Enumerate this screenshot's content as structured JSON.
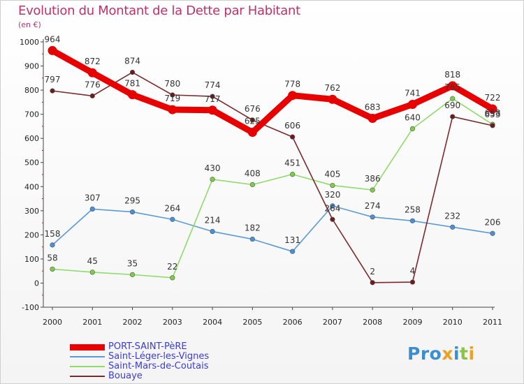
{
  "title": "Evolution du Montant de la Dette par Habitant",
  "subtitle": "(en €)",
  "logo": {
    "p1": "Pro",
    "x": "x",
    "i1": "i",
    "t": "t",
    "i2": "i"
  },
  "chart_data": {
    "type": "line",
    "x": [
      "2000",
      "2001",
      "2002",
      "2003",
      "2004",
      "2005",
      "2006",
      "2007",
      "2008",
      "2009",
      "2010",
      "2011"
    ],
    "ylim": [
      -100,
      1000
    ],
    "yticks": [
      -100,
      0,
      100,
      200,
      300,
      400,
      500,
      600,
      700,
      800,
      900,
      1000
    ],
    "grid": false,
    "legend_position": "bottom-left",
    "series": [
      {
        "name": "PORT-SAINT-PèRE",
        "color": "#e80000",
        "marker": "#e80000",
        "values": [
          964,
          872,
          781,
          719,
          717,
          625,
          778,
          762,
          683,
          741,
          818,
          722
        ]
      },
      {
        "name": "Saint-Léger-les-Vignes",
        "color": "#5b9bd5",
        "marker": "#4a90d9",
        "values": [
          158,
          307,
          295,
          264,
          214,
          182,
          131,
          320,
          274,
          258,
          232,
          206
        ]
      },
      {
        "name": "Saint-Mars-de-Coutais",
        "color": "#8fdc6a",
        "marker": "#7fcc4a",
        "values": [
          58,
          45,
          35,
          22,
          430,
          408,
          451,
          405,
          386,
          640,
          765,
          658
        ]
      },
      {
        "name": "Bouaye",
        "color": "#7a2a2a",
        "marker": "#6b1c1c",
        "values": [
          797,
          776,
          874,
          780,
          774,
          676,
          606,
          264,
          2,
          4,
          690,
          653
        ]
      }
    ],
    "labels": [
      {
        "series": 0,
        "i": 0,
        "text": "964"
      },
      {
        "series": 0,
        "i": 1,
        "text": "872"
      },
      {
        "series": 0,
        "i": 2,
        "text": "781"
      },
      {
        "series": 0,
        "i": 3,
        "text": "719"
      },
      {
        "series": 0,
        "i": 4,
        "text": "717"
      },
      {
        "series": 0,
        "i": 5,
        "text": "625"
      },
      {
        "series": 0,
        "i": 6,
        "text": "778"
      },
      {
        "series": 0,
        "i": 7,
        "text": "762"
      },
      {
        "series": 0,
        "i": 8,
        "text": "683"
      },
      {
        "series": 0,
        "i": 9,
        "text": "741"
      },
      {
        "series": 0,
        "i": 10,
        "text": "818"
      },
      {
        "series": 0,
        "i": 11,
        "text": "722"
      },
      {
        "series": 1,
        "i": 0,
        "text": "158"
      },
      {
        "series": 1,
        "i": 1,
        "text": "307"
      },
      {
        "series": 1,
        "i": 2,
        "text": "295"
      },
      {
        "series": 1,
        "i": 3,
        "text": "264"
      },
      {
        "series": 1,
        "i": 4,
        "text": "214"
      },
      {
        "series": 1,
        "i": 5,
        "text": "182"
      },
      {
        "series": 1,
        "i": 6,
        "text": "131"
      },
      {
        "series": 1,
        "i": 7,
        "text": "320"
      },
      {
        "series": 1,
        "i": 8,
        "text": "274"
      },
      {
        "series": 1,
        "i": 9,
        "text": "258"
      },
      {
        "series": 1,
        "i": 10,
        "text": "232"
      },
      {
        "series": 1,
        "i": 11,
        "text": "206"
      },
      {
        "series": 2,
        "i": 0,
        "text": "58"
      },
      {
        "series": 2,
        "i": 1,
        "text": "45"
      },
      {
        "series": 2,
        "i": 2,
        "text": "35"
      },
      {
        "series": 2,
        "i": 3,
        "text": "22"
      },
      {
        "series": 2,
        "i": 4,
        "text": "430"
      },
      {
        "series": 2,
        "i": 5,
        "text": "408"
      },
      {
        "series": 2,
        "i": 6,
        "text": "451"
      },
      {
        "series": 2,
        "i": 7,
        "text": "405"
      },
      {
        "series": 2,
        "i": 8,
        "text": "386"
      },
      {
        "series": 2,
        "i": 9,
        "text": "640"
      },
      {
        "series": 2,
        "i": 10,
        "text": "765"
      },
      {
        "series": 2,
        "i": 11,
        "text": "658"
      },
      {
        "series": 3,
        "i": 0,
        "text": "797"
      },
      {
        "series": 3,
        "i": 1,
        "text": "776"
      },
      {
        "series": 3,
        "i": 2,
        "text": "874"
      },
      {
        "series": 3,
        "i": 3,
        "text": "780"
      },
      {
        "series": 3,
        "i": 4,
        "text": "774"
      },
      {
        "series": 3,
        "i": 5,
        "text": "676"
      },
      {
        "series": 3,
        "i": 6,
        "text": "606"
      },
      {
        "series": 3,
        "i": 7,
        "text": "264"
      },
      {
        "series": 3,
        "i": 8,
        "text": "2"
      },
      {
        "series": 3,
        "i": 9,
        "text": "4"
      },
      {
        "series": 3,
        "i": 10,
        "text": "690"
      },
      {
        "series": 3,
        "i": 11,
        "text": "653"
      }
    ]
  }
}
